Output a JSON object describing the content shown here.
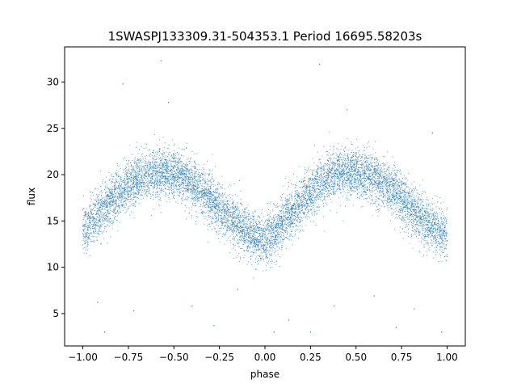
{
  "chart_data": {
    "type": "scatter",
    "title": "1SWASPJ133309.31-504353.1 Period 16695.58203s",
    "xlabel": "phase",
    "ylabel": "flux",
    "xlim": [
      -1.1,
      1.1
    ],
    "ylim": [
      1.5,
      33.8
    ],
    "xticks": [
      -1.0,
      -0.75,
      -0.5,
      -0.25,
      0.0,
      0.25,
      0.5,
      0.75,
      1.0
    ],
    "xtick_labels": [
      "−1.00",
      "−0.75",
      "−0.50",
      "−0.25",
      "0.00",
      "0.25",
      "0.50",
      "0.75",
      "1.00"
    ],
    "yticks": [
      5,
      10,
      15,
      20,
      25,
      30
    ],
    "ytick_labels": [
      "5",
      "10",
      "15",
      "20",
      "25",
      "30"
    ],
    "grid": false,
    "marker_color": "#1f77b4",
    "light_curve_profile": {
      "x": [
        -1.0,
        -0.9,
        -0.8,
        -0.7,
        -0.6,
        -0.5,
        -0.4,
        -0.3,
        -0.2,
        -0.1,
        -0.05,
        0.0,
        0.05,
        0.1,
        0.2,
        0.3,
        0.4,
        0.5,
        0.6,
        0.7,
        0.8,
        0.9,
        1.0
      ],
      "y": [
        14.0,
        16.0,
        18.0,
        19.5,
        20.2,
        20.2,
        19.0,
        17.5,
        15.5,
        13.8,
        13.3,
        13.0,
        13.5,
        15.0,
        17.0,
        19.0,
        20.3,
        20.2,
        19.5,
        18.3,
        16.5,
        14.5,
        13.5
      ]
    },
    "scatter_spread_sd": 1.3,
    "outliers": [
      {
        "x": -0.57,
        "y": 32.3
      },
      {
        "x": -0.78,
        "y": 29.8
      },
      {
        "x": 0.3,
        "y": 31.9
      },
      {
        "x": -0.92,
        "y": 6.2
      },
      {
        "x": -0.88,
        "y": 3.0
      },
      {
        "x": -0.72,
        "y": 5.3
      },
      {
        "x": -0.4,
        "y": 5.8
      },
      {
        "x": -0.28,
        "y": 3.7
      },
      {
        "x": 0.05,
        "y": 3.0
      },
      {
        "x": 0.13,
        "y": 4.3
      },
      {
        "x": 0.25,
        "y": 3.0
      },
      {
        "x": 0.72,
        "y": 3.5
      },
      {
        "x": 0.82,
        "y": 5.5
      },
      {
        "x": 0.97,
        "y": 3.0
      },
      {
        "x": 0.38,
        "y": 5.8
      },
      {
        "x": -0.15,
        "y": 7.6
      },
      {
        "x": 0.6,
        "y": 6.9
      },
      {
        "x": 0.92,
        "y": 24.5
      },
      {
        "x": 0.45,
        "y": 27.0
      },
      {
        "x": -0.53,
        "y": 27.8
      }
    ]
  }
}
